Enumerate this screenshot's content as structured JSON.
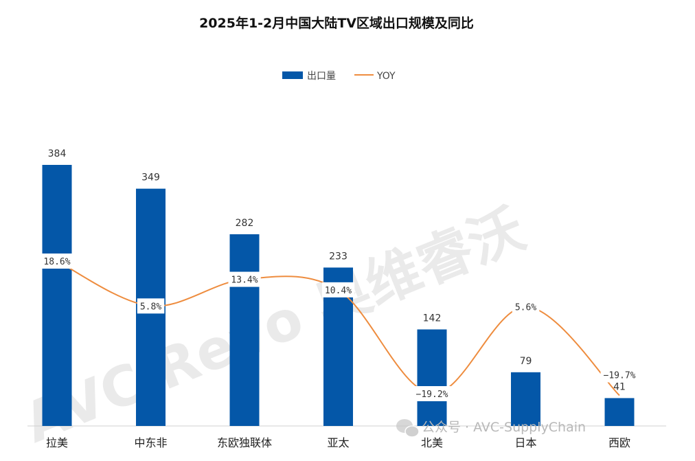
{
  "chart_data": {
    "type": "bar",
    "title": "2025年1-2月中国大陆TV区域出口规模及同比",
    "categories": [
      "拉美",
      "中东非",
      "东欧独联体",
      "亚太",
      "北美",
      "日本",
      "西欧"
    ],
    "series": [
      {
        "name": "出口量",
        "type": "bar",
        "values": [
          384,
          349,
          282,
          233,
          142,
          79,
          41
        ],
        "labels": [
          "384",
          "349",
          "282",
          "233",
          "142",
          "79",
          "41"
        ]
      },
      {
        "name": "YOY",
        "type": "line",
        "values": [
          18.6,
          5.8,
          13.4,
          10.4,
          -19.2,
          5.6,
          -19.7
        ],
        "labels": [
          "18.6%",
          "5.8%",
          "13.4%",
          "10.4%",
          "−19.2%",
          "5.6%",
          "−19.7%"
        ]
      }
    ],
    "legend_position": "top-center",
    "grid": false,
    "colors": {
      "bar": "#0457a8",
      "line": "#ee8c3e"
    },
    "watermark": {
      "text": "AVC Revo 奥维睿沃"
    },
    "credit": {
      "text": "公众号 · AVC-SupplyChain"
    }
  }
}
